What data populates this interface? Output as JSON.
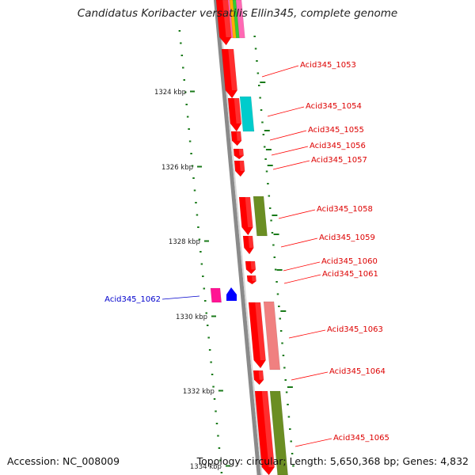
{
  "title": "Candidatus Koribacter versatilis Ellin345, complete genome",
  "footer": {
    "accession": "Accession: NC_008009",
    "summary": "Topology: circular; Length: 5,650,368 bp; Genes: 4,832"
  },
  "colors": {
    "backbone": "#8a8a8a",
    "tick": "#1a7a1a",
    "gene_forward": "#ff0000",
    "gene_reverse_label": "#0000cc",
    "cyan": "#00cccc",
    "olive": "#6b8e23",
    "salmon": "#f08080",
    "magenta": "#ff1493",
    "blue": "#0000ff"
  },
  "scale_labels": [
    "1324 kbp",
    "1326 kbp",
    "1328 kbp",
    "1330 kbp",
    "1332 kbp",
    "1334 kbp"
  ],
  "genes": [
    {
      "label": "Acid345_1053",
      "strand": "+"
    },
    {
      "label": "Acid345_1054",
      "strand": "+"
    },
    {
      "label": "Acid345_1055",
      "strand": "+"
    },
    {
      "label": "Acid345_1056",
      "strand": "+"
    },
    {
      "label": "Acid345_1057",
      "strand": "+"
    },
    {
      "label": "Acid345_1058",
      "strand": "+"
    },
    {
      "label": "Acid345_1059",
      "strand": "+"
    },
    {
      "label": "Acid345_1060",
      "strand": "+"
    },
    {
      "label": "Acid345_1061",
      "strand": "+"
    },
    {
      "label": "Acid345_1062",
      "strand": "-"
    },
    {
      "label": "Acid345_1063",
      "strand": "+"
    },
    {
      "label": "Acid345_1064",
      "strand": "+"
    },
    {
      "label": "Acid345_1065",
      "strand": "+"
    }
  ]
}
